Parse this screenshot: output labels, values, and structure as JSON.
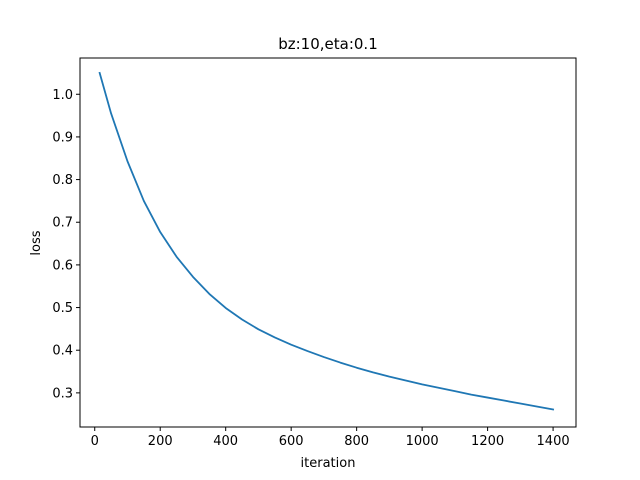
{
  "chart_data": {
    "type": "line",
    "title": "bz:10,eta:0.1",
    "xlabel": "iteration",
    "ylabel": "loss",
    "xlim": [
      -45,
      1470
    ],
    "ylim": [
      0.22,
      1.085
    ],
    "xticks": [
      0,
      200,
      400,
      600,
      800,
      1000,
      1200,
      1400
    ],
    "xtick_labels": [
      "0",
      "200",
      "400",
      "600",
      "800",
      "1000",
      "1200",
      "1400"
    ],
    "yticks": [
      0.3,
      0.4,
      0.5,
      0.6,
      0.7,
      0.8,
      0.9,
      1.0
    ],
    "ytick_labels": [
      "0.3",
      "0.4",
      "0.5",
      "0.6",
      "0.7",
      "0.8",
      "0.9",
      "1.0"
    ],
    "grid": false,
    "series": [
      {
        "color": "#1f77b4",
        "x": [
          15,
          50,
          100,
          150,
          200,
          250,
          300,
          350,
          400,
          450,
          500,
          550,
          600,
          650,
          700,
          750,
          800,
          850,
          900,
          950,
          1000,
          1050,
          1100,
          1150,
          1200,
          1250,
          1300,
          1350,
          1400
        ],
        "y": [
          1.05,
          0.955,
          0.843,
          0.75,
          0.677,
          0.619,
          0.572,
          0.532,
          0.499,
          0.472,
          0.449,
          0.43,
          0.413,
          0.398,
          0.384,
          0.371,
          0.359,
          0.348,
          0.338,
          0.329,
          0.32,
          0.312,
          0.304,
          0.296,
          0.289,
          0.282,
          0.275,
          0.268,
          0.261
        ]
      }
    ]
  }
}
